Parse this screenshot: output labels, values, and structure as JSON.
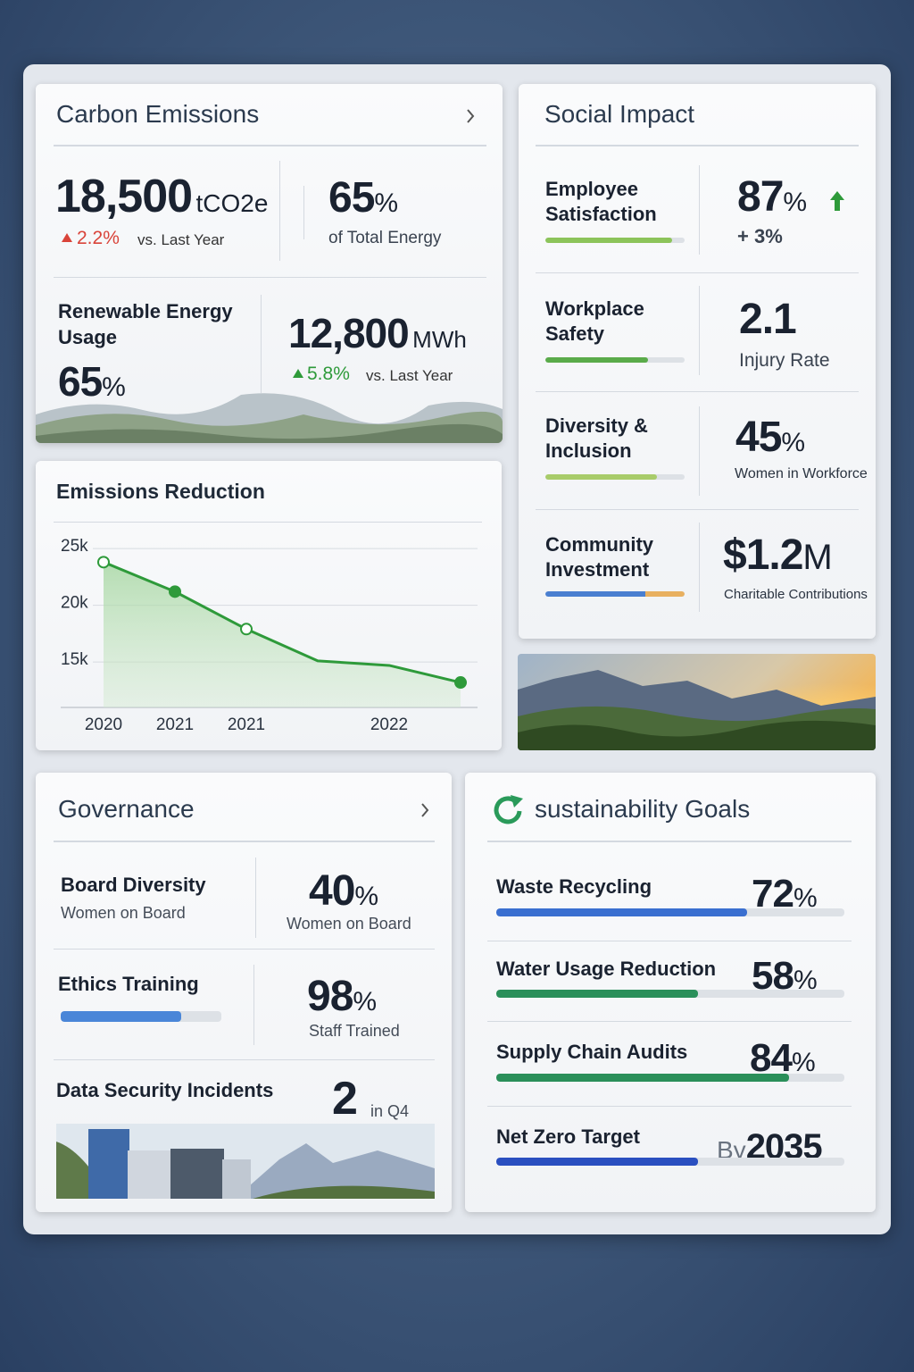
{
  "carbon_emissions": {
    "title": "Carbon Emissions",
    "total": "18,500",
    "total_unit": "tCO2e",
    "total_change": "2.2%",
    "total_compare": "vs. Last Year",
    "share": "65",
    "share_unit": "%",
    "share_label": "of Total Energy",
    "renewable_label": "Renewable Energy Usage",
    "renewable": "65",
    "renewable_unit": "%",
    "energy": "12,800",
    "energy_unit": "MWh",
    "energy_change": "5.8%",
    "energy_compare": "vs. Last Year"
  },
  "chart_data": {
    "type": "line",
    "title": "Emissions Reduction",
    "categories": [
      "2020",
      "2021",
      "2021",
      null,
      "2022",
      null
    ],
    "values": [
      23800,
      21200,
      17900,
      15100,
      14700,
      13200
    ],
    "color": "#2e9a3a",
    "ylim": [
      11000,
      26500
    ],
    "yticks": [
      {
        "value": 15000,
        "label": "15k"
      },
      {
        "value": 20000,
        "label": "20k"
      },
      {
        "value": 25000,
        "label": "25k"
      }
    ],
    "grid": true
  },
  "social_impact": {
    "title": "Social Impact",
    "rows": [
      {
        "label": "Employee Satisfaction",
        "value": "87",
        "unit": "%",
        "note": "+ 3%"
      },
      {
        "label": "Workplace Safety",
        "value": "2.1",
        "note": "Injury Rate"
      },
      {
        "label": "Diversity & Inclusion",
        "value": "45",
        "unit": "%",
        "note": "Women in Workforce"
      },
      {
        "label": "Community Investment",
        "value": "$1.2",
        "unit": "M",
        "note": "Charitable Contributions"
      }
    ]
  },
  "governance": {
    "title": "Governance",
    "board_label": "Board Diversity",
    "board_sub": "Women on Board",
    "board_value": "40",
    "board_unit": "%",
    "board_note": "Women on Board",
    "ethics_label": "Ethics Training",
    "ethics_value": "98",
    "ethics_unit": "%",
    "ethics_note": "Staff Trained",
    "security_label": "Data Security Incidents",
    "security_value": "2",
    "security_note": "in Q4"
  },
  "goals": {
    "title": "sustainability Goals",
    "items": [
      {
        "label": "Waste Recycling",
        "value": 72,
        "unit": "%"
      },
      {
        "label": "Water Usage Reduction",
        "value": 58,
        "unit": "%"
      },
      {
        "label": "Supply Chain Audits",
        "value": 84,
        "unit": "%"
      },
      {
        "label": "Net Zero Target",
        "prefix": "By",
        "target": "2035"
      }
    ]
  }
}
